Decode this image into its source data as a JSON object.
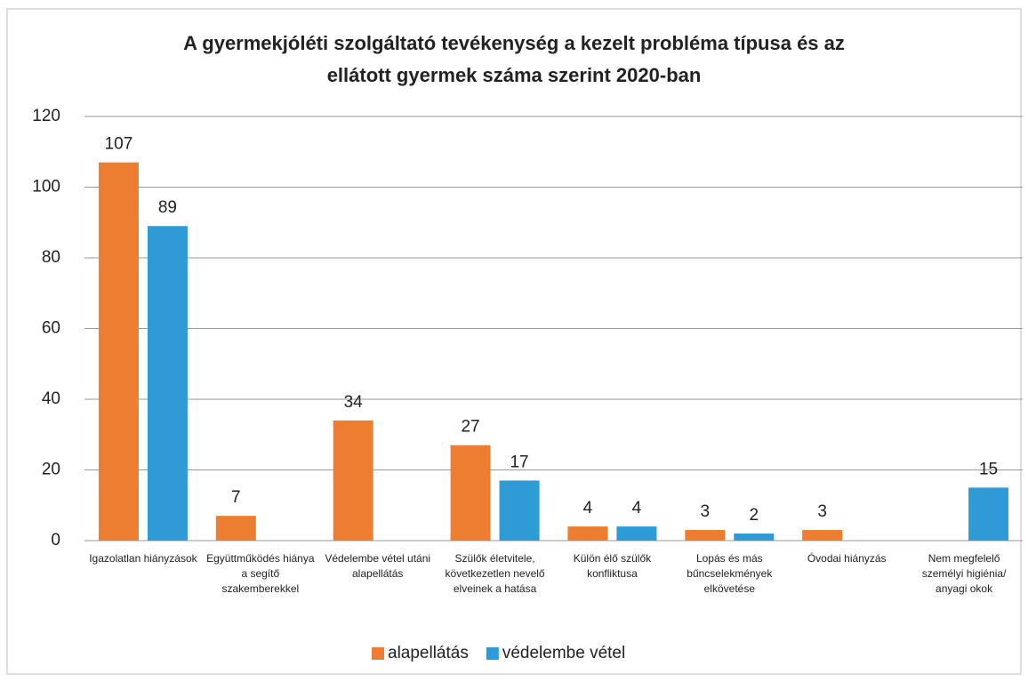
{
  "chart_data": {
    "type": "bar",
    "title": [
      "A gyermekjóléti szolgáltató tevékenység a kezelt probléma típusa és az",
      "ellátott gyermek száma szerint  2020-ban"
    ],
    "categories": [
      "Igazolatlan hiányzások",
      "Együttműködés hiánya a segítő szakemberekkel",
      "Védelembe vétel utáni alapellátás",
      "Szülők életvitele, következetlen nevelő elveinek a hatása",
      "Külön élő szülők konfliktusa",
      "Lopás és más bűncselekmények elkövetése",
      "Óvodai hiányzás",
      "Nem megfelelő személyi higiénia/ anyagi okok"
    ],
    "series": [
      {
        "name": "alapellátás",
        "color": "#ed7d31",
        "values": [
          107,
          7,
          34,
          27,
          4,
          3,
          3,
          null
        ]
      },
      {
        "name": "védelembe vétel",
        "color": "#2e9bd6",
        "values": [
          89,
          null,
          null,
          17,
          4,
          2,
          null,
          15
        ]
      }
    ],
    "ylim": [
      0,
      120
    ],
    "yticks": [
      0,
      20,
      40,
      60,
      80,
      100,
      120
    ],
    "grid": true,
    "legend": "bottom"
  }
}
